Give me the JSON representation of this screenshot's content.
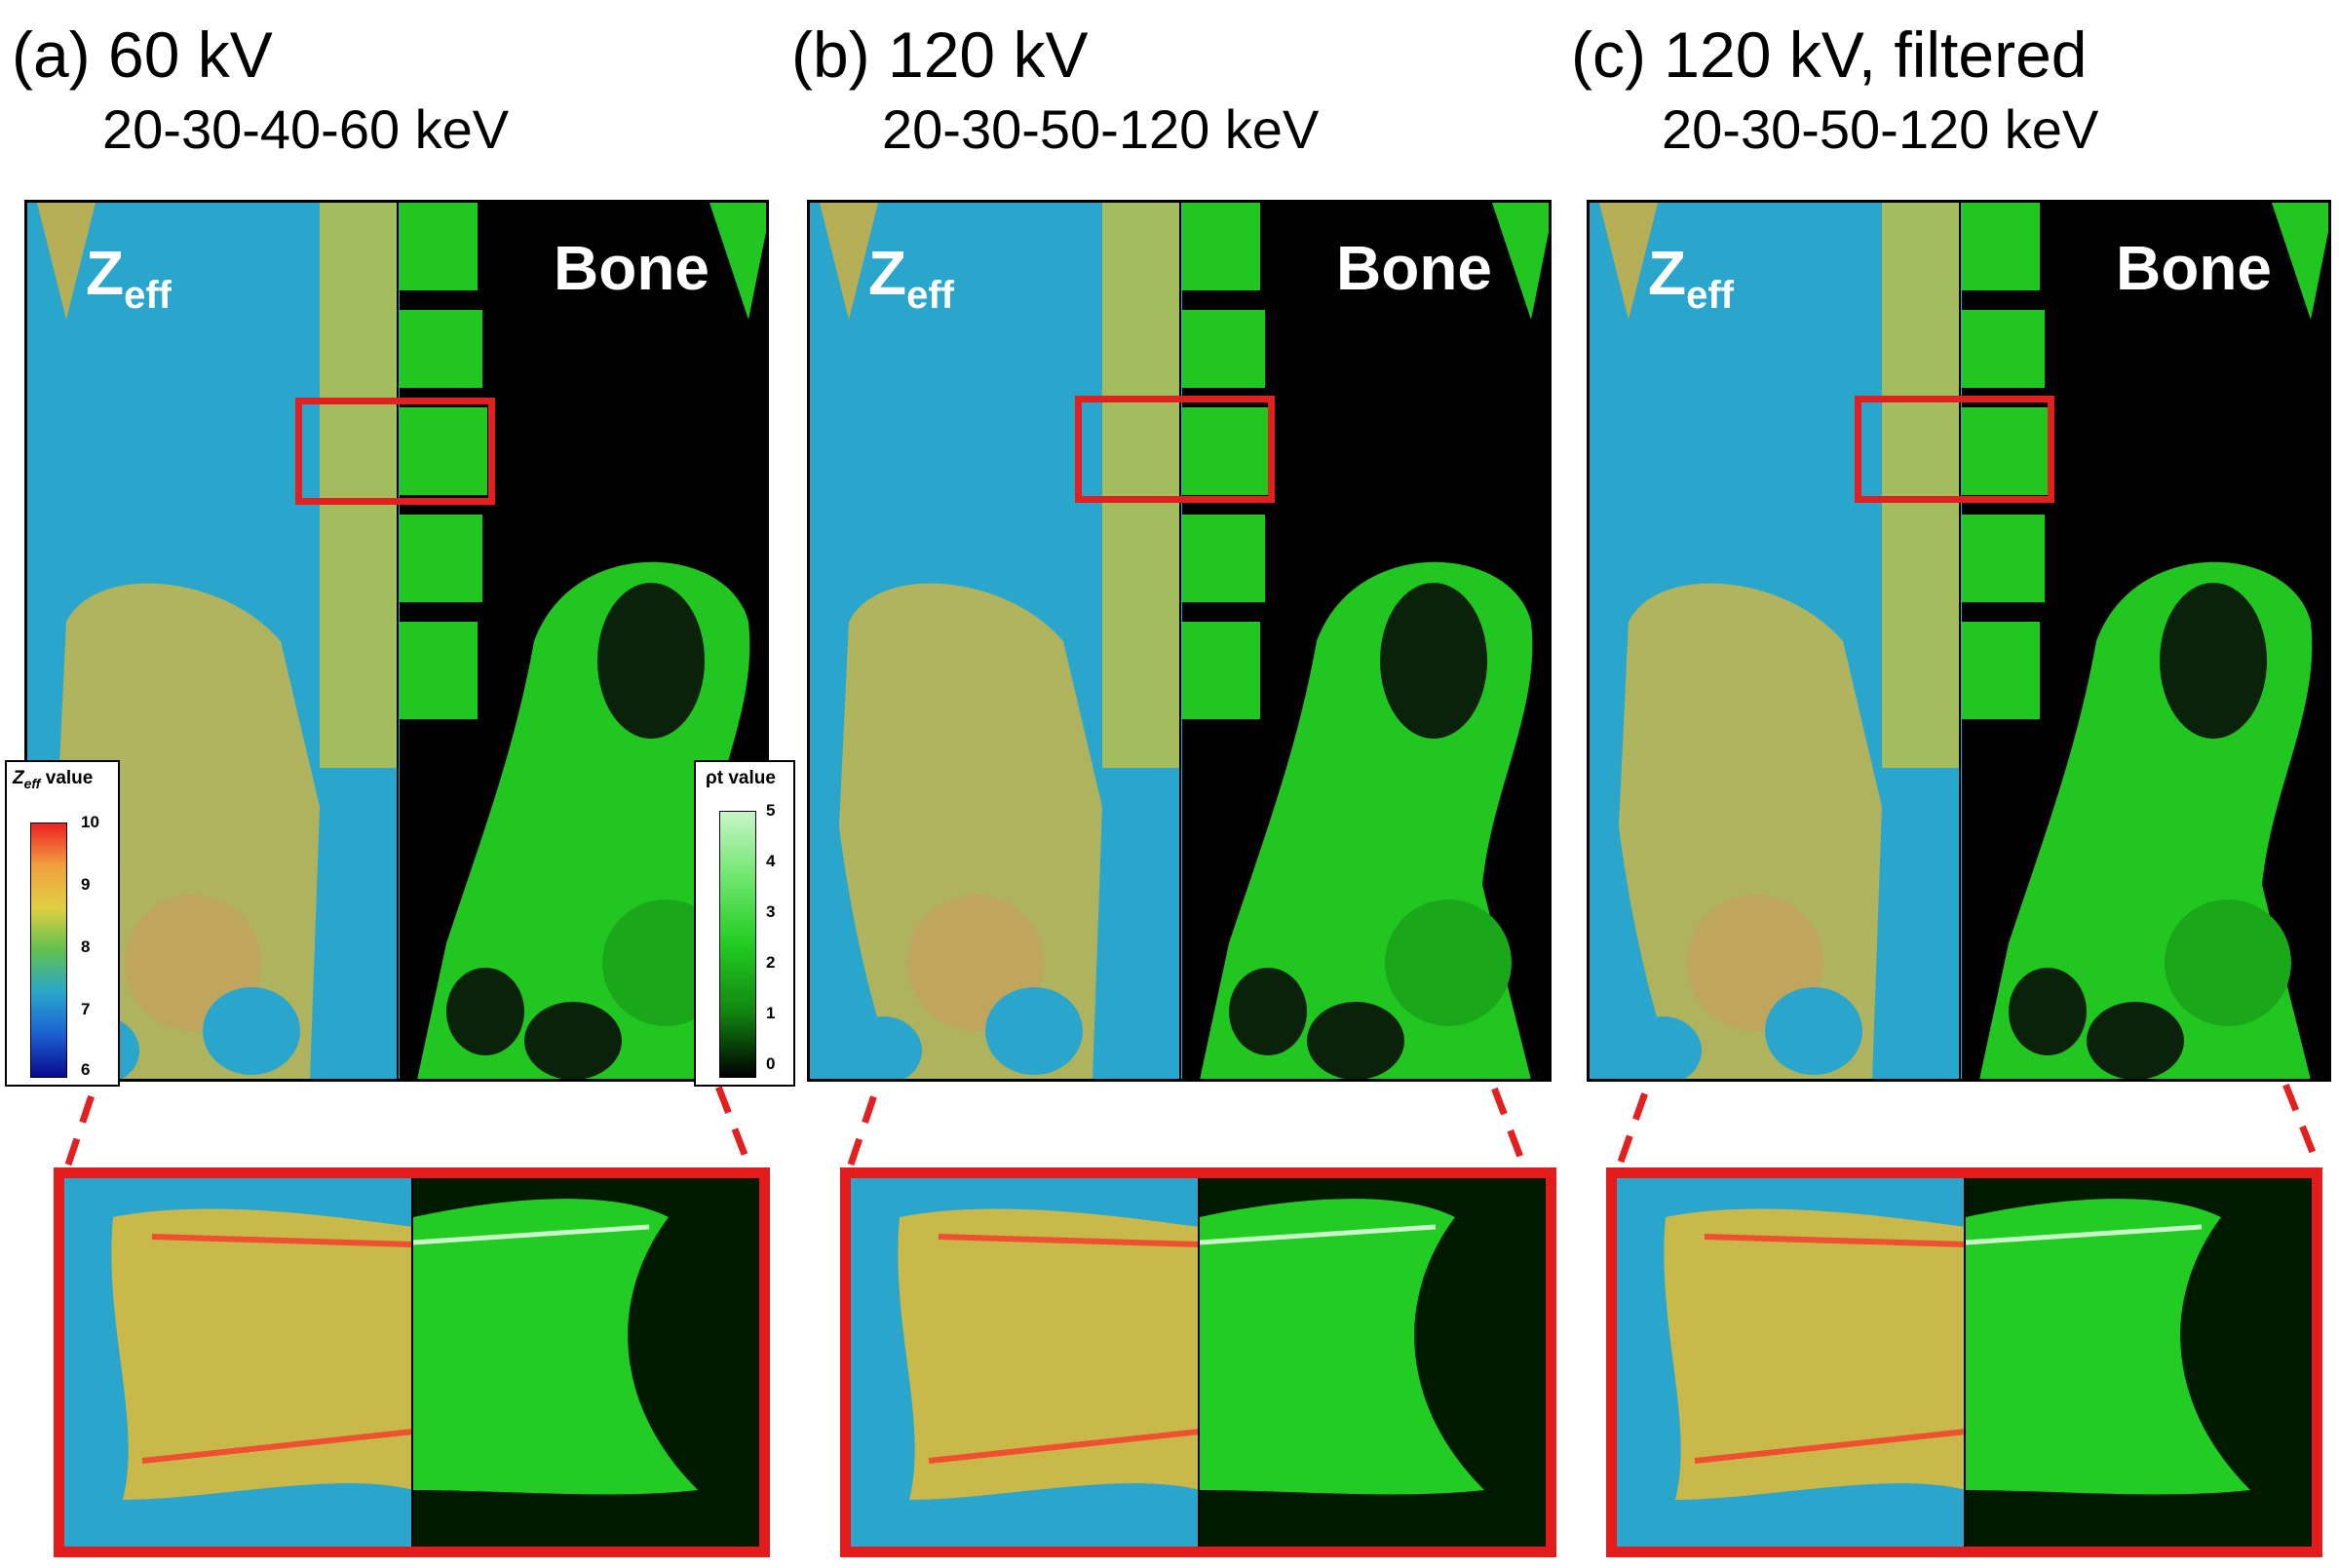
{
  "panels": [
    {
      "label": "(a) 60 kV",
      "energies": "20-30-40-60 keV"
    },
    {
      "label": "(b) 120 kV",
      "energies": "20-30-50-120 keV"
    },
    {
      "label": "(c) 120 kV, filtered",
      "energies": "20-30-50-120 keV"
    }
  ],
  "overlay": {
    "zeff_label": "Z",
    "zeff_sub": "eff",
    "bone_label": "Bone"
  },
  "colorbars": {
    "zeff": {
      "title_main": "Z",
      "title_sub": "eff",
      "title_rest": " value",
      "ticks": [
        "10",
        "9",
        "8",
        "7",
        "6"
      ]
    },
    "rho": {
      "title": "ρt value",
      "ticks": [
        "5",
        "4",
        "3",
        "2",
        "1",
        "0"
      ]
    }
  },
  "colors": {
    "zeff_background": "#2aa6cc",
    "bone_green": "#22dd22",
    "roi_red": "#e32020"
  }
}
